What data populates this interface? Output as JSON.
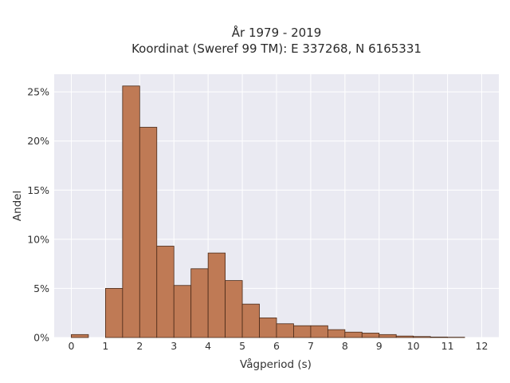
{
  "chart_data": {
    "type": "bar",
    "title_lines": [
      "År 1979 - 2019",
      "Koordinat (Sweref 99 TM): E 337268, N 6165331"
    ],
    "xlabel": "Vågperiod (s)",
    "ylabel": "Andel",
    "x_ticks": [
      0,
      1,
      2,
      3,
      4,
      5,
      6,
      7,
      8,
      9,
      10,
      11,
      12
    ],
    "y_ticks": [
      0,
      5,
      10,
      15,
      20,
      25
    ],
    "y_tick_labels": [
      "0%",
      "5%",
      "10%",
      "15%",
      "20%",
      "25%"
    ],
    "xlim": [
      -0.5,
      12.5
    ],
    "ylim": [
      0,
      26.8
    ],
    "bin_width": 0.5,
    "bins": [
      {
        "start": 0.0,
        "value": 0.3
      },
      {
        "start": 0.5,
        "value": 0.0
      },
      {
        "start": 1.0,
        "value": 5.0
      },
      {
        "start": 1.5,
        "value": 25.6
      },
      {
        "start": 2.0,
        "value": 21.4
      },
      {
        "start": 2.5,
        "value": 9.3
      },
      {
        "start": 3.0,
        "value": 5.3
      },
      {
        "start": 3.5,
        "value": 7.0
      },
      {
        "start": 4.0,
        "value": 8.6
      },
      {
        "start": 4.5,
        "value": 5.8
      },
      {
        "start": 5.0,
        "value": 3.4
      },
      {
        "start": 5.5,
        "value": 2.0
      },
      {
        "start": 6.0,
        "value": 1.4
      },
      {
        "start": 6.5,
        "value": 1.2
      },
      {
        "start": 7.0,
        "value": 1.2
      },
      {
        "start": 7.5,
        "value": 0.8
      },
      {
        "start": 8.0,
        "value": 0.55
      },
      {
        "start": 8.5,
        "value": 0.45
      },
      {
        "start": 9.0,
        "value": 0.3
      },
      {
        "start": 9.5,
        "value": 0.15
      },
      {
        "start": 10.0,
        "value": 0.1
      },
      {
        "start": 10.5,
        "value": 0.05
      },
      {
        "start": 11.0,
        "value": 0.03
      }
    ],
    "grid": true,
    "colors": {
      "bar_fill": "#bf7a55",
      "bar_edge": "#4a2a18",
      "plot_background": "#eaeaf2",
      "grid": "#ffffff"
    }
  }
}
